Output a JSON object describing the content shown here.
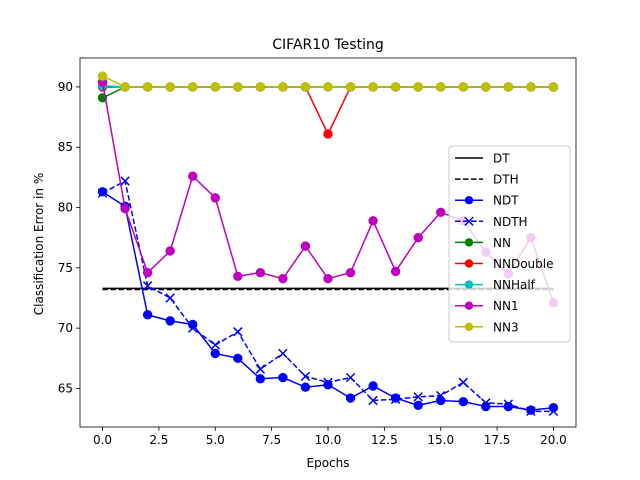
{
  "chart_data": {
    "type": "line",
    "title": "CIFAR10 Testing",
    "xlabel": "Epochs",
    "ylabel": "Classification Error in %",
    "xlim": [
      -1.0,
      21.0
    ],
    "ylim": [
      61.8,
      92.4
    ],
    "xticks": [
      0.0,
      2.5,
      5.0,
      7.5,
      10.0,
      12.5,
      15.0,
      17.5,
      20.0
    ],
    "xtick_labels": [
      "0.0",
      "2.5",
      "5.0",
      "7.5",
      "10.0",
      "12.5",
      "15.0",
      "17.5",
      "20.0"
    ],
    "yticks": [
      65,
      70,
      75,
      80,
      85,
      90
    ],
    "ytick_labels": [
      "65",
      "70",
      "75",
      "80",
      "85",
      "90"
    ],
    "grid": false,
    "legend_position": "center-right",
    "series": [
      {
        "name": "DT",
        "color": "#000000",
        "dash": "solid",
        "marker": "none",
        "x": [
          0,
          20
        ],
        "y": [
          73.3,
          73.3
        ]
      },
      {
        "name": "DTH",
        "color": "#000000",
        "dash": "dashed",
        "marker": "none",
        "x": [
          0,
          20
        ],
        "y": [
          73.2,
          73.2
        ]
      },
      {
        "name": "NDT",
        "color": "#0000ff",
        "dash": "solid",
        "marker": "circle",
        "x": [
          0,
          1,
          2,
          3,
          4,
          5,
          6,
          7,
          8,
          9,
          10,
          11,
          12,
          13,
          14,
          15,
          16,
          17,
          18,
          19,
          20
        ],
        "y": [
          81.3,
          80.1,
          71.1,
          70.6,
          70.3,
          67.9,
          67.5,
          65.8,
          65.9,
          65.1,
          65.3,
          64.2,
          65.2,
          64.2,
          63.6,
          64.0,
          63.9,
          63.5,
          63.5,
          63.2,
          63.4
        ]
      },
      {
        "name": "NDTH",
        "color": "#0000ff",
        "dash": "dashed",
        "marker": "x",
        "x": [
          0,
          1,
          2,
          3,
          4,
          5,
          6,
          7,
          8,
          9,
          10,
          11,
          12,
          13,
          14,
          15,
          16,
          17,
          18,
          19,
          20
        ],
        "y": [
          81.2,
          82.2,
          73.5,
          72.5,
          70.0,
          68.6,
          69.7,
          66.6,
          67.9,
          66.0,
          65.5,
          65.9,
          64.0,
          64.1,
          64.3,
          64.4,
          65.5,
          63.8,
          63.7,
          63.1,
          63.1
        ]
      },
      {
        "name": "NN",
        "color": "#008000",
        "dash": "solid",
        "marker": "circle",
        "x": [
          0,
          1,
          2,
          3,
          4,
          5,
          6,
          7,
          8,
          9,
          10,
          11,
          12,
          13,
          14,
          15,
          16,
          17,
          18,
          19,
          20
        ],
        "y": [
          89.1,
          90,
          90,
          90,
          90,
          90,
          90,
          90,
          90,
          90,
          90,
          90,
          90,
          90,
          90,
          90,
          90,
          90,
          90,
          90,
          90
        ]
      },
      {
        "name": "NNDouble",
        "color": "#ff0000",
        "dash": "solid",
        "marker": "circle",
        "x": [
          0,
          1,
          2,
          3,
          4,
          5,
          6,
          7,
          8,
          9,
          10,
          11,
          12,
          13,
          14,
          15,
          16,
          17,
          18,
          19,
          20
        ],
        "y": [
          90,
          90,
          90,
          90,
          90,
          90,
          90,
          90,
          90,
          90,
          86.1,
          90,
          90,
          90,
          90,
          90,
          90,
          90,
          90,
          90,
          90
        ]
      },
      {
        "name": "NNHalf",
        "color": "#00bfbf",
        "dash": "solid",
        "marker": "circle",
        "x": [
          0,
          1,
          2,
          3,
          4,
          5,
          6,
          7,
          8,
          9,
          10,
          11,
          12,
          13,
          14,
          15,
          16,
          17,
          18,
          19,
          20
        ],
        "y": [
          90.1,
          90,
          90,
          90,
          90,
          90,
          90,
          90,
          90,
          90,
          90,
          90,
          90,
          90,
          90,
          90,
          90,
          90,
          90,
          90,
          90
        ]
      },
      {
        "name": "NN1",
        "color": "#bf00bf",
        "dash": "solid",
        "marker": "circle",
        "x": [
          0,
          1,
          2,
          3,
          4,
          5,
          6,
          7,
          8,
          9,
          10,
          11,
          12,
          13,
          14,
          15,
          16,
          17,
          18,
          19,
          20
        ],
        "y": [
          90.4,
          79.9,
          74.6,
          76.4,
          82.6,
          80.8,
          74.3,
          74.6,
          74.1,
          76.8,
          74.1,
          74.6,
          78.9,
          74.7,
          77.5,
          79.6,
          78.9,
          76.3,
          74.5,
          77.5,
          72.1
        ]
      },
      {
        "name": "NN3",
        "color": "#bfbf00",
        "dash": "solid",
        "marker": "circle",
        "x": [
          0,
          1,
          2,
          3,
          4,
          5,
          6,
          7,
          8,
          9,
          10,
          11,
          12,
          13,
          14,
          15,
          16,
          17,
          18,
          19,
          20
        ],
        "y": [
          90.9,
          90,
          90,
          90,
          90,
          90,
          90,
          90,
          90,
          90,
          90,
          90,
          90,
          90,
          90,
          90,
          90,
          90,
          90,
          90,
          90
        ]
      }
    ]
  }
}
